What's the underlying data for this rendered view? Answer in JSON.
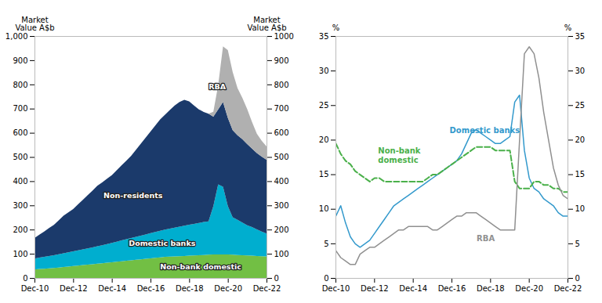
{
  "chart_data": [
    {
      "type": "area",
      "stacked": true,
      "x": [
        2010.92,
        2011.17,
        2011.42,
        2011.67,
        2011.92,
        2012.17,
        2012.42,
        2012.67,
        2012.92,
        2013.17,
        2013.42,
        2013.67,
        2013.92,
        2014.17,
        2014.42,
        2014.67,
        2014.92,
        2015.17,
        2015.42,
        2015.67,
        2015.92,
        2016.17,
        2016.42,
        2016.67,
        2016.92,
        2017.17,
        2017.42,
        2017.67,
        2017.92,
        2018.17,
        2018.42,
        2018.67,
        2018.92,
        2019.17,
        2019.42,
        2019.67,
        2019.92,
        2020.17,
        2020.42,
        2020.67,
        2020.92,
        2021.17,
        2021.42,
        2021.67,
        2021.92,
        2022.17,
        2022.42,
        2022.67,
        2022.92
      ],
      "xlim": [
        2010.92,
        2022.92
      ],
      "xticks": [
        {
          "value": 2010.92,
          "label": "Dec-10"
        },
        {
          "value": 2012.92,
          "label": "Dec-12"
        },
        {
          "value": 2014.92,
          "label": "Dec-14"
        },
        {
          "value": 2016.92,
          "label": "Dec-16"
        },
        {
          "value": 2018.92,
          "label": "Dec-18"
        },
        {
          "value": 2020.92,
          "label": "Dec-20"
        },
        {
          "value": 2022.92,
          "label": "Dec-22"
        }
      ],
      "ylim": [
        0,
        1000
      ],
      "yticks": [
        0,
        100,
        200,
        300,
        400,
        500,
        600,
        700,
        800,
        900,
        {
          "value": 1000,
          "label": "1,000"
        }
      ],
      "y2lim": [
        0,
        1000
      ],
      "y2ticks": [
        0,
        100,
        200,
        300,
        400,
        500,
        600,
        700,
        800,
        900,
        1000
      ],
      "ylabel": "Market\nValue A$b",
      "y2label": "Market\nValue A$b",
      "series": [
        {
          "name": "Non-bank domestic",
          "color": "#72bf44",
          "values": [
            35,
            37,
            38,
            40,
            41,
            43,
            45,
            47,
            49,
            51,
            53,
            55,
            57,
            59,
            61,
            63,
            65,
            67,
            69,
            71,
            73,
            75,
            77,
            79,
            81,
            83,
            85,
            87,
            88,
            89,
            90,
            91,
            92,
            93,
            94,
            95,
            96,
            97,
            97,
            97,
            97,
            96,
            95,
            94,
            93,
            92,
            91,
            90,
            89
          ]
        },
        {
          "name": "Domestic banks",
          "color": "#00aecf",
          "values": [
            45,
            47,
            49,
            51,
            53,
            55,
            57,
            59,
            61,
            63,
            65,
            67,
            69,
            72,
            74,
            77,
            80,
            83,
            86,
            89,
            92,
            95,
            98,
            101,
            104,
            107,
            110,
            113,
            116,
            119,
            122,
            125,
            128,
            130,
            133,
            136,
            138,
            200,
            290,
            280,
            200,
            155,
            145,
            135,
            125,
            118,
            110,
            102,
            95
          ]
        },
        {
          "name": "Non-residents",
          "color": "#1b3a6b",
          "values": [
            85,
            95,
            105,
            115,
            125,
            140,
            155,
            165,
            175,
            190,
            205,
            220,
            235,
            250,
            260,
            270,
            280,
            295,
            310,
            325,
            340,
            360,
            380,
            400,
            420,
            440,
            460,
            475,
            490,
            505,
            515,
            520,
            510,
            490,
            470,
            455,
            445,
            370,
            310,
            350,
            365,
            360,
            350,
            345,
            335,
            325,
            315,
            310,
            305
          ]
        },
        {
          "name": "RBA",
          "color": "#b0b0b0",
          "values": [
            0,
            0,
            0,
            0,
            0,
            0,
            0,
            0,
            0,
            0,
            0,
            0,
            0,
            0,
            0,
            0,
            0,
            0,
            0,
            0,
            0,
            0,
            0,
            0,
            0,
            0,
            0,
            0,
            0,
            0,
            0,
            0,
            0,
            0,
            0,
            0,
            0,
            20,
            100,
            230,
            280,
            240,
            195,
            170,
            145,
            110,
            80,
            65,
            55
          ]
        }
      ],
      "annotations": [
        {
          "text": "Non-residents",
          "x": 2016.0,
          "y": 340
        },
        {
          "text": "Domestic banks",
          "x": 2017.5,
          "y": 145
        },
        {
          "text": "Non-bank domestic",
          "x": 2019.5,
          "y": 47
        },
        {
          "text": "RBA",
          "x": 2020.35,
          "y": 790
        }
      ]
    },
    {
      "type": "line",
      "x": [
        2010.92,
        2011.17,
        2011.42,
        2011.67,
        2011.92,
        2012.17,
        2012.42,
        2012.67,
        2012.92,
        2013.17,
        2013.42,
        2013.67,
        2013.92,
        2014.17,
        2014.42,
        2014.67,
        2014.92,
        2015.17,
        2015.42,
        2015.67,
        2015.92,
        2016.17,
        2016.42,
        2016.67,
        2016.92,
        2017.17,
        2017.42,
        2017.67,
        2017.92,
        2018.17,
        2018.42,
        2018.67,
        2018.92,
        2019.17,
        2019.42,
        2019.67,
        2019.92,
        2020.17,
        2020.42,
        2020.67,
        2020.92,
        2021.17,
        2021.42,
        2021.67,
        2021.92,
        2022.17,
        2022.42,
        2022.67,
        2022.92
      ],
      "xlim": [
        2010.92,
        2022.92
      ],
      "xticks": [
        {
          "value": 2010.92,
          "label": "Dec-10"
        },
        {
          "value": 2012.92,
          "label": "Dec-12"
        },
        {
          "value": 2014.92,
          "label": "Dec-14"
        },
        {
          "value": 2016.92,
          "label": "Dec-16"
        },
        {
          "value": 2018.92,
          "label": "Dec-18"
        },
        {
          "value": 2020.92,
          "label": "Dec-20"
        },
        {
          "value": 2022.92,
          "label": "Dec-22"
        }
      ],
      "ylim": [
        0,
        35
      ],
      "yticks": [
        0,
        5,
        10,
        15,
        20,
        25,
        30,
        35
      ],
      "y2lim": [
        0,
        35
      ],
      "y2ticks": [
        0,
        5,
        10,
        15,
        20,
        25,
        30,
        35
      ],
      "ylabel": "%",
      "y2label": "%",
      "series": [
        {
          "name": "Domestic banks",
          "color": "#3399cc",
          "line_style": "solid",
          "values": [
            9.0,
            10.5,
            8.0,
            6.0,
            5.0,
            4.5,
            5.0,
            5.5,
            6.5,
            7.5,
            8.5,
            9.5,
            10.5,
            11.0,
            11.5,
            12.0,
            12.5,
            13.0,
            13.5,
            14.0,
            14.5,
            15.0,
            15.5,
            16.0,
            16.5,
            17.0,
            18.0,
            19.5,
            21.0,
            21.5,
            21.0,
            20.5,
            20.0,
            19.5,
            19.5,
            20.0,
            20.5,
            25.5,
            26.5,
            18.5,
            14.5,
            13.0,
            12.5,
            11.5,
            11.0,
            10.5,
            9.5,
            9.0,
            9.0
          ]
        },
        {
          "name": "Non-bank domestic",
          "color": "#4ab04a",
          "line_style": "dashed",
          "values": [
            19.5,
            18.0,
            17.0,
            16.5,
            15.5,
            15.0,
            14.5,
            14.0,
            14.5,
            14.5,
            14.0,
            14.0,
            14.0,
            14.0,
            14.0,
            14.0,
            14.0,
            14.0,
            14.0,
            14.5,
            15.0,
            15.0,
            15.5,
            16.0,
            16.5,
            17.0,
            17.5,
            18.0,
            18.5,
            19.0,
            19.0,
            19.0,
            19.0,
            18.5,
            18.5,
            18.5,
            18.5,
            14.0,
            13.0,
            13.0,
            13.0,
            14.0,
            14.0,
            13.5,
            13.5,
            13.0,
            13.0,
            12.5,
            12.5
          ]
        },
        {
          "name": "RBA",
          "color": "#909090",
          "line_style": "solid",
          "values": [
            4.0,
            3.0,
            2.5,
            2.0,
            2.0,
            3.5,
            4.0,
            4.5,
            4.5,
            5.0,
            5.5,
            6.0,
            6.5,
            7.0,
            7.0,
            7.5,
            7.5,
            7.5,
            7.5,
            7.5,
            7.0,
            7.0,
            7.5,
            8.0,
            8.5,
            9.0,
            9.0,
            9.5,
            9.5,
            9.5,
            9.0,
            8.5,
            8.0,
            7.5,
            7.0,
            7.0,
            7.0,
            7.0,
            20.0,
            32.5,
            33.5,
            32.5,
            29.0,
            24.0,
            20.0,
            16.0,
            13.5,
            12.0,
            11.5
          ]
        }
      ],
      "annotations": [
        {
          "text": "Domestic banks",
          "x": 2016.8,
          "y": 21.5
        },
        {
          "text": "Non-bank\ndomestic",
          "x": 2013.1,
          "y": 17.8
        },
        {
          "text": "RBA",
          "x": 2018.2,
          "y": 5.8
        }
      ]
    }
  ]
}
